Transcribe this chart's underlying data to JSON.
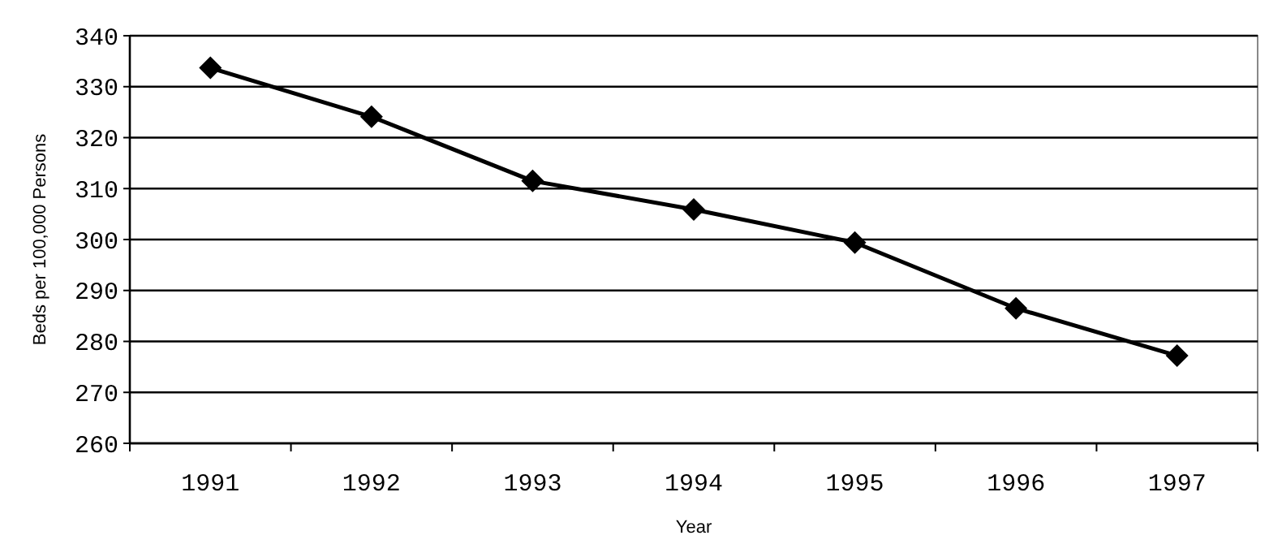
{
  "chart_data": {
    "type": "line",
    "xlabel": "Year",
    "ylabel": "Beds per 100,000 Persons",
    "categories": [
      "1991",
      "1992",
      "1993",
      "1994",
      "1995",
      "1996",
      "1997"
    ],
    "series": [
      {
        "color": "#000000",
        "values": [
          333.7,
          324.1,
          311.5,
          305.9,
          299.4,
          286.5,
          277.2
        ]
      }
    ],
    "ylim": [
      260,
      340
    ],
    "yticks": [
      260,
      270,
      280,
      290,
      300,
      310,
      320,
      330,
      340
    ],
    "grid": "y",
    "marker": "diamond",
    "line_style": "solid"
  }
}
